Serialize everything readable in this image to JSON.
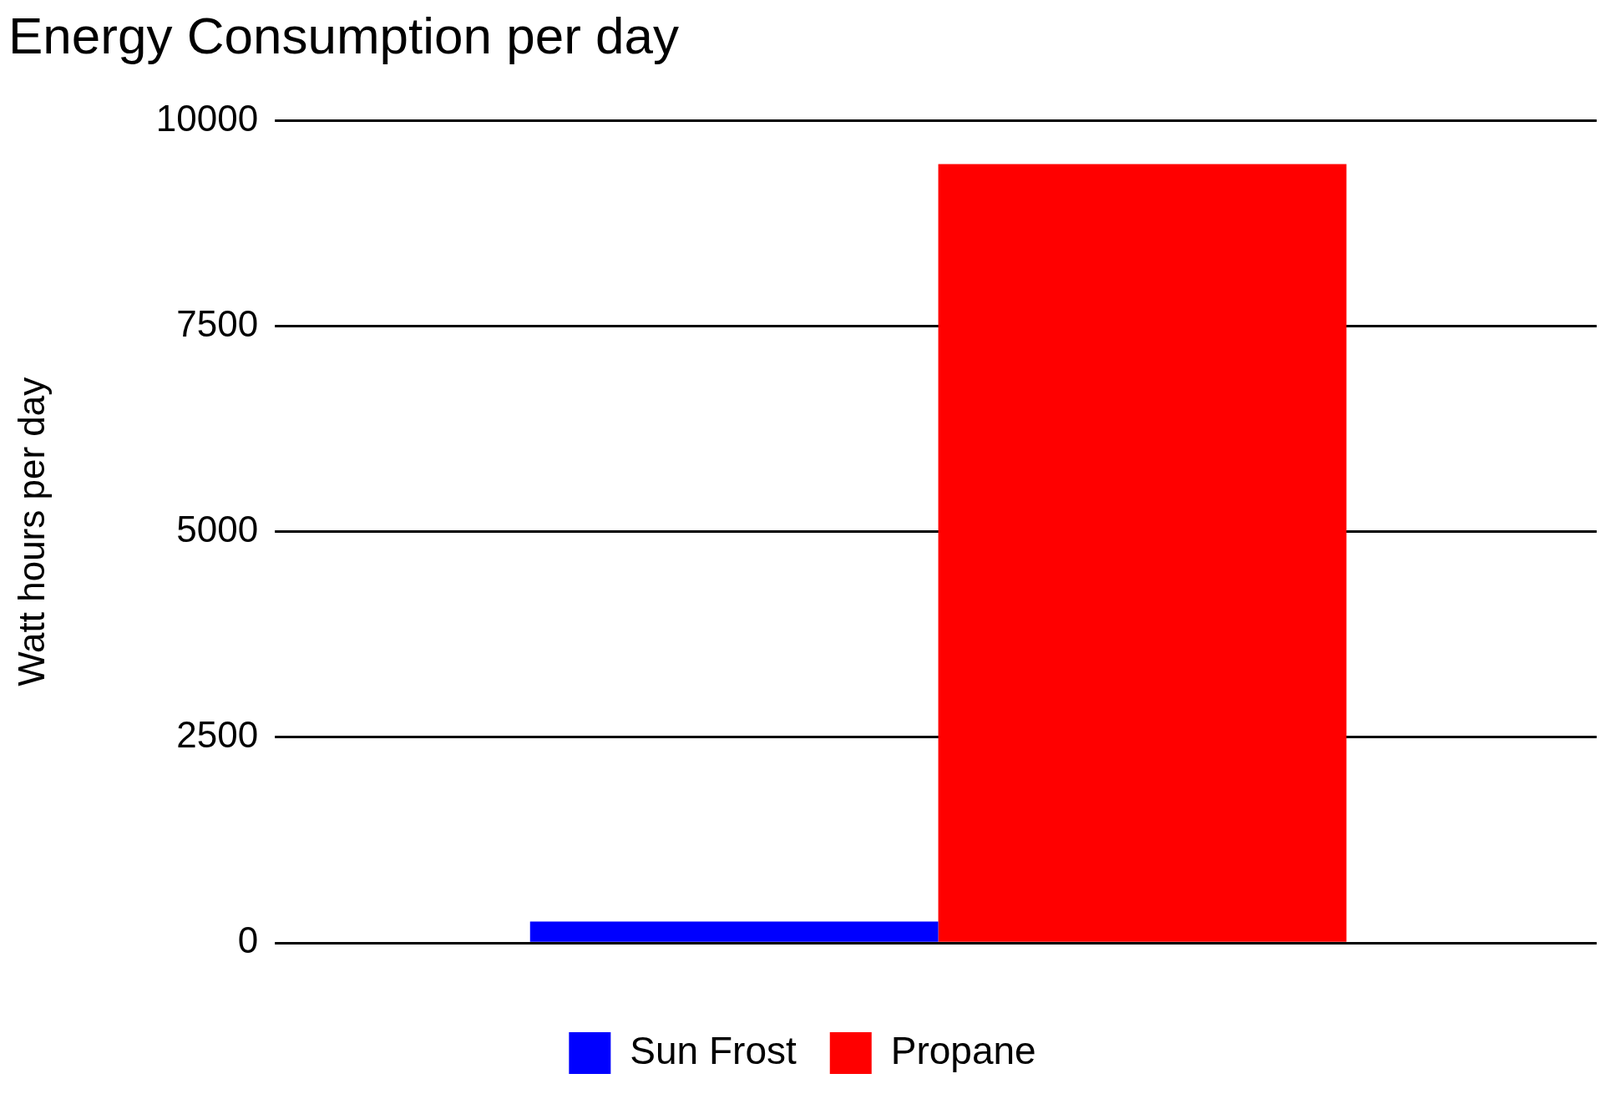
{
  "chart_data": {
    "type": "bar",
    "title": "Energy Consumption per day",
    "y_label": "Watt hours per day",
    "categories": [
      null
    ],
    "series": [
      {
        "name": "Sun Frost",
        "color": "#0000ff",
        "values": [
          260
        ]
      },
      {
        "name": "Propane",
        "color": "#ff0000",
        "values": [
          9470
        ]
      }
    ],
    "ylim": [
      0,
      10000
    ],
    "yticks": [
      0,
      2500,
      5000,
      7500,
      10000
    ],
    "grid": true,
    "legend": "bottom"
  }
}
